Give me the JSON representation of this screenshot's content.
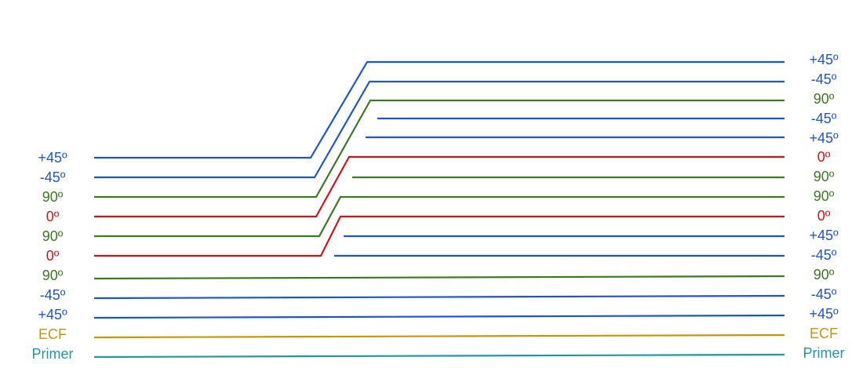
{
  "colors": {
    "plus45": "#1c55d4",
    "minus45": "#1c55d4",
    "p90": "#3b7a1e",
    "p0": "#d41319",
    "ecf": "#c8960c",
    "primer": "#1b9aa6"
  },
  "left_labels": [
    {
      "text": "+45º",
      "color": "plus45"
    },
    {
      "text": "-45º",
      "color": "minus45"
    },
    {
      "text": "90º",
      "color": "p90"
    },
    {
      "text": "0º",
      "color": "p0"
    },
    {
      "text": "90º",
      "color": "p90"
    },
    {
      "text": "0º",
      "color": "p0"
    },
    {
      "text": "90º",
      "color": "p90"
    },
    {
      "text": "-45º",
      "color": "minus45"
    },
    {
      "text": "+45º",
      "color": "plus45"
    },
    {
      "text": "ECF",
      "color": "ecf"
    },
    {
      "text": "Primer",
      "color": "primer"
    }
  ],
  "right_labels": [
    {
      "text": "+45º",
      "color": "plus45"
    },
    {
      "text": "-45º",
      "color": "minus45"
    },
    {
      "text": "90º",
      "color": "p90"
    },
    {
      "text": "-45º",
      "color": "minus45"
    },
    {
      "text": "+45º",
      "color": "plus45"
    },
    {
      "text": "0º",
      "color": "p0"
    },
    {
      "text": "90º",
      "color": "p90"
    },
    {
      "text": "90º",
      "color": "p90"
    },
    {
      "text": "0º",
      "color": "p0"
    },
    {
      "text": "+45º",
      "color": "plus45"
    },
    {
      "text": "-45º",
      "color": "minus45"
    },
    {
      "text": "90º",
      "color": "p90"
    },
    {
      "text": "-45º",
      "color": "minus45"
    },
    {
      "text": "+45º",
      "color": "plus45"
    },
    {
      "text": "ECF",
      "color": "ecf"
    },
    {
      "text": "Primer",
      "color": "primer"
    }
  ]
}
